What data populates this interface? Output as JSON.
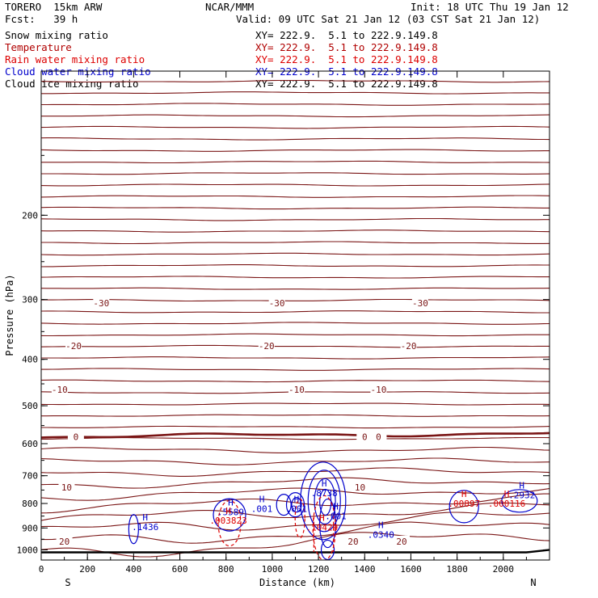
{
  "header": {
    "model": "TORERO  15km ARW",
    "org": "NCAR/MMM",
    "init": "Init: 18 UTC Thu 19 Jan 12",
    "fcst": "Fcst:   39 h",
    "valid": "Valid: 09 UTC Sat 21 Jan 12 (03 CST Sat 21 Jan 12)"
  },
  "legend": [
    {
      "name": "Snow mixing ratio",
      "xy": "XY= 222.9.  5.1 to 222.9.149.8",
      "color": "#000000"
    },
    {
      "name": "Temperature",
      "xy": "XY= 222.9.  5.1 to 222.9.149.8",
      "color": "#b00000"
    },
    {
      "name": "Rain water mixing ratio",
      "xy": "XY= 222.9.  5.1 to 222.9.149.8",
      "color": "#dd0000"
    },
    {
      "name": "Cloud water mixing ratio",
      "xy": "XY= 222.9.  5.1 to 222.9.149.8",
      "color": "#0000cc"
    },
    {
      "name": "Cloud ice mixing ratio",
      "xy": "XY= 222.9.  5.1 to 222.9.149.8",
      "color": "#000000"
    }
  ],
  "chart_data": {
    "type": "cross-section contour",
    "xlabel": "Distance (km)",
    "ylabel": "Pressure (hPa)",
    "xlim": [
      0,
      2200
    ],
    "ylim": [
      1050,
      100
    ],
    "y_scale": "log",
    "x_ticks": [
      0,
      200,
      400,
      600,
      800,
      1000,
      1200,
      1400,
      1600,
      1800,
      2000
    ],
    "y_ticks": [
      200,
      300,
      400,
      500,
      600,
      700,
      800,
      900,
      1000
    ],
    "x_end_labels": {
      "left": "S",
      "right": "N"
    },
    "temperature_contours": [
      {
        "label": "-30",
        "pressure": 305,
        "label_x": [
          260,
          1020,
          1640
        ]
      },
      {
        "label": "-20",
        "pressure": 375,
        "label_x": [
          140,
          975,
          1590
        ]
      },
      {
        "label": "-10",
        "pressure": 462,
        "label_x": [
          80,
          1105,
          1460
        ]
      },
      {
        "label": "0",
        "pressure": 580,
        "label_x": [
          150,
          1400,
          1460
        ]
      },
      {
        "label": "10",
        "pressure": 740,
        "label_x": [
          110,
          1380
        ]
      },
      {
        "label": "20",
        "pressure": 960,
        "label_x": [
          100,
          1350,
          1560
        ]
      }
    ],
    "maxima_labels": [
      {
        "text": ".1436",
        "x": 450,
        "p": 910,
        "color": "#0000cc"
      },
      {
        "text": ".5589",
        "x": 820,
        "p": 847,
        "color": "#0000cc"
      },
      {
        "text": ".003823",
        "x": 810,
        "p": 882,
        "color": "#dd0000"
      },
      {
        "text": ".001",
        "x": 955,
        "p": 833,
        "color": "#0000cc"
      },
      {
        "text": ".001",
        "x": 1105,
        "p": 833,
        "color": "#0000cc"
      },
      {
        "text": ".8738",
        "x": 1225,
        "p": 772,
        "color": "#0000cc"
      },
      {
        "text": ".001",
        "x": 1275,
        "p": 863,
        "color": "#0000cc"
      },
      {
        "text": ".10429",
        "x": 1215,
        "p": 912,
        "color": "#dd0000"
      },
      {
        "text": ".0340",
        "x": 1470,
        "p": 944,
        "color": "#0000cc"
      },
      {
        "text": ".00897",
        "x": 1830,
        "p": 812,
        "color": "#dd0000"
      },
      {
        "text": ".000116",
        "x": 2015,
        "p": 812,
        "color": "#dd0000"
      },
      {
        "text": ".2932",
        "x": 2080,
        "p": 780,
        "color": "#0000cc"
      }
    ]
  }
}
